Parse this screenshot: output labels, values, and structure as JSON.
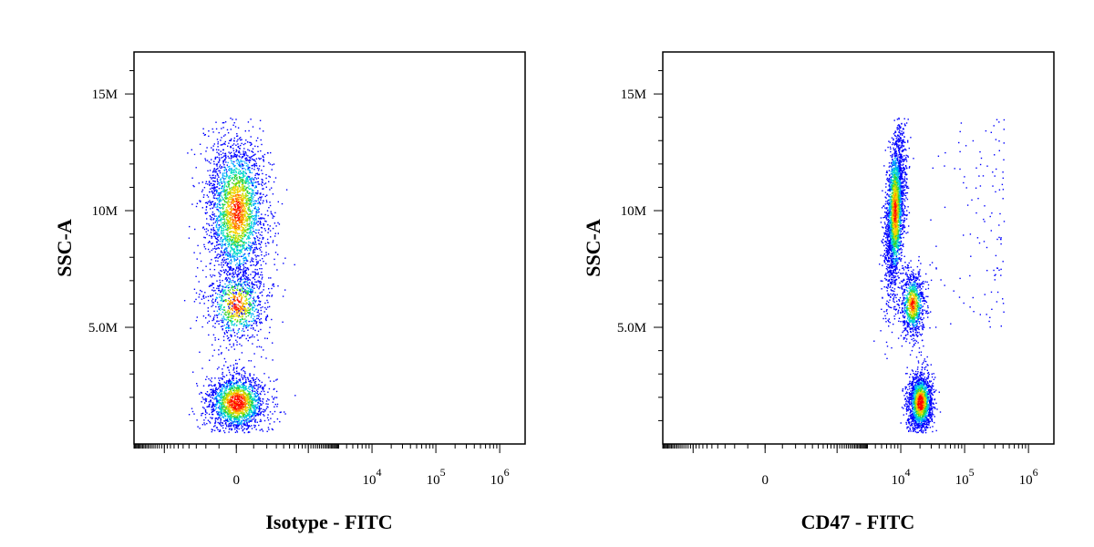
{
  "chart_data": [
    {
      "type": "scatter",
      "subtype": "density-dot-plot",
      "xlabel": "Isotype - FITC",
      "ylabel": "SSC-A",
      "x_scale": "biexponential",
      "x_ticks": [
        {
          "value": 0,
          "label": "0"
        },
        {
          "value": 10000,
          "label": "10",
          "sup": "4"
        },
        {
          "value": 100000,
          "label": "10",
          "sup": "5"
        },
        {
          "value": 1000000,
          "label": "10",
          "sup": "6"
        }
      ],
      "y_ticks": [
        {
          "value": 5000000,
          "label": "5.0M"
        },
        {
          "value": 10000000,
          "label": "10M"
        },
        {
          "value": 15000000,
          "label": "15M"
        }
      ],
      "ylim": [
        0,
        16800000
      ],
      "populations": [
        {
          "name": "low-ssc",
          "x_center": 0,
          "y_center": 1800000,
          "y_spread": 900000
        },
        {
          "name": "mid-ssc",
          "x_center": 0,
          "y_center": 6000000,
          "y_spread": 1200000
        },
        {
          "name": "high-ssc",
          "x_center": 0,
          "y_center": 10000000,
          "y_spread": 2200000
        }
      ],
      "colors": [
        "#0000ff",
        "#00aaff",
        "#00e0c0",
        "#30d030",
        "#c0e000",
        "#ffd000",
        "#ff7000",
        "#ff0000"
      ]
    },
    {
      "type": "scatter",
      "subtype": "density-dot-plot",
      "xlabel": "CD47 - FITC",
      "ylabel": "SSC-A",
      "x_scale": "biexponential",
      "x_ticks": [
        {
          "value": 0,
          "label": "0"
        },
        {
          "value": 10000,
          "label": "10",
          "sup": "4"
        },
        {
          "value": 100000,
          "label": "10",
          "sup": "5"
        },
        {
          "value": 1000000,
          "label": "10",
          "sup": "6"
        }
      ],
      "y_ticks": [
        {
          "value": 5000000,
          "label": "5.0M"
        },
        {
          "value": 10000000,
          "label": "10M"
        },
        {
          "value": 15000000,
          "label": "15M"
        }
      ],
      "ylim": [
        0,
        16800000
      ],
      "populations": [
        {
          "name": "low-ssc",
          "x_center": 20000,
          "y_center": 1800000,
          "y_spread": 900000
        },
        {
          "name": "mid-ssc",
          "x_center": 15000,
          "y_center": 6000000,
          "y_spread": 1000000
        },
        {
          "name": "high-ssc",
          "x_center": 8000,
          "y_center": 10000000,
          "y_spread": 2200000
        }
      ],
      "colors": [
        "#0000ff",
        "#00aaff",
        "#00e0c0",
        "#30d030",
        "#c0e000",
        "#ffd000",
        "#ff7000",
        "#ff0000"
      ]
    }
  ]
}
